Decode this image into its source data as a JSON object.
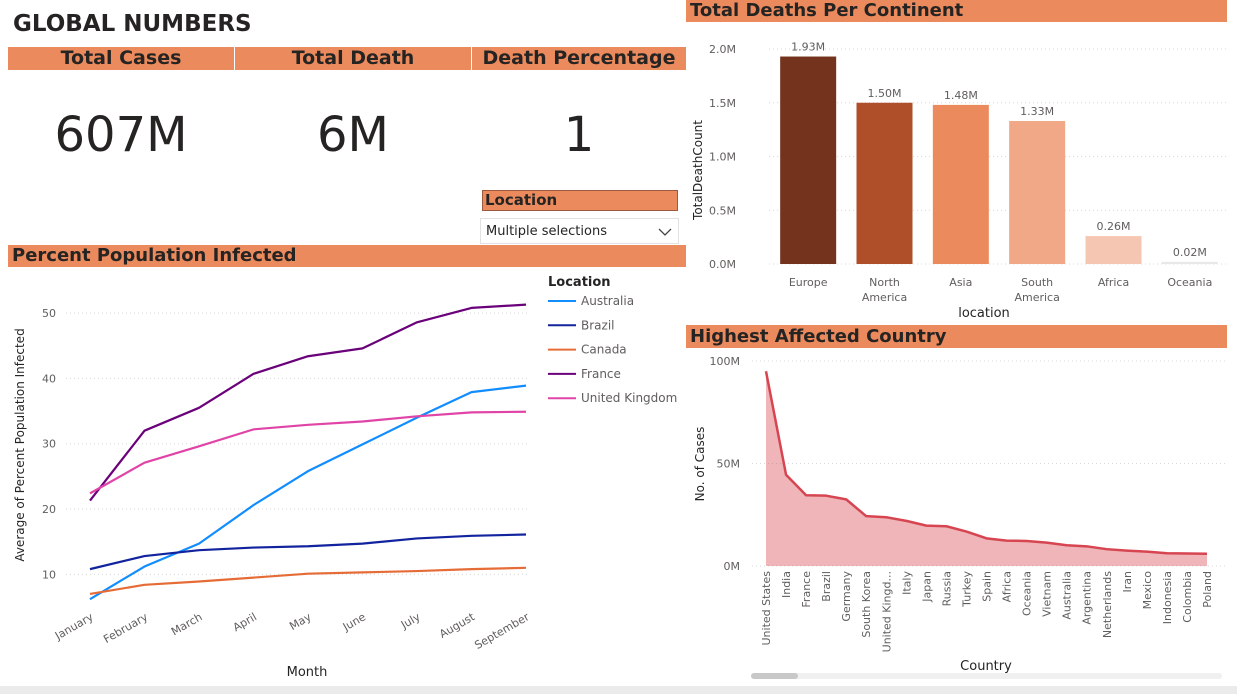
{
  "header": {
    "title": "GLOBAL NUMBERS"
  },
  "kpis": {
    "cases_label": "Total Cases",
    "cases_value": "607M",
    "death_label": "Total Death",
    "death_value": "6M",
    "pct_label": "Death Percentage",
    "pct_value": "1"
  },
  "slicer": {
    "label": "Location",
    "value": "Multiple selections"
  },
  "colors": {
    "banner": "#ea8a5d",
    "australia": "#118dff",
    "brazil": "#12239e",
    "canada": "#e66c37",
    "france": "#6b007b",
    "uk": "#e044a7",
    "area": "#d64550"
  },
  "chart_data": [
    {
      "type": "bar",
      "title": "Total Deaths Per Continent",
      "xlabel": "location",
      "ylabel": "TotalDeathCount",
      "categories": [
        "Europe",
        "North America",
        "Asia",
        "South America",
        "Africa",
        "Oceania"
      ],
      "values": [
        1930000,
        1500000,
        1480000,
        1330000,
        260000,
        20000
      ],
      "data_labels": [
        "1.93M",
        "1.50M",
        "1.48M",
        "1.33M",
        "0.26M",
        "0.02M"
      ],
      "bar_colors": [
        "#73331d",
        "#ae4f2a",
        "#ea8a5d",
        "#f0a886",
        "#f5c7b2",
        "#e8e8e8"
      ],
      "yticks": [
        0,
        500000,
        1000000,
        1500000,
        2000000
      ],
      "ytick_labels": [
        "0.0M",
        "0.5M",
        "1.0M",
        "1.5M",
        "2.0M"
      ],
      "ylim": [
        0,
        2000000
      ],
      "grid": true
    },
    {
      "type": "line",
      "title": "Percent Population Infected",
      "xlabel": "Month",
      "ylabel": "Average of Percent Population Infected",
      "legend_title": "Location",
      "legend_position": "right",
      "categories": [
        "January",
        "February",
        "March",
        "April",
        "May",
        "June",
        "July",
        "August",
        "September"
      ],
      "series": [
        {
          "name": "Australia",
          "color": "#118dff",
          "values": [
            6.2,
            11.2,
            14.7,
            20.6,
            25.8,
            29.9,
            34.0,
            37.9,
            38.9
          ]
        },
        {
          "name": "Brazil",
          "color": "#12239e",
          "values": [
            10.8,
            12.8,
            13.7,
            14.1,
            14.3,
            14.7,
            15.5,
            15.9,
            16.1
          ]
        },
        {
          "name": "Canada",
          "color": "#e66c37",
          "values": [
            7.0,
            8.4,
            8.9,
            9.5,
            10.1,
            10.3,
            10.5,
            10.8,
            11.0
          ]
        },
        {
          "name": "France",
          "color": "#6b007b",
          "values": [
            21.3,
            32.0,
            35.5,
            40.7,
            43.4,
            44.6,
            48.6,
            50.8,
            51.3
          ]
        },
        {
          "name": "United Kingdom",
          "color": "#e044a7",
          "values": [
            22.4,
            27.1,
            29.6,
            32.2,
            32.9,
            33.4,
            34.2,
            34.8,
            34.9
          ]
        }
      ],
      "yticks": [
        10,
        20,
        30,
        40,
        50
      ],
      "ylim": [
        5,
        54
      ],
      "grid": true
    },
    {
      "type": "area",
      "title": "Highest Affected Country",
      "xlabel": "Country",
      "ylabel": "No. of Cases",
      "categories": [
        "United States",
        "India",
        "France",
        "Brazil",
        "Germany",
        "South Korea",
        "United Kingd...",
        "Italy",
        "Japan",
        "Russia",
        "Turkey",
        "Spain",
        "Africa",
        "Oceania",
        "Vietnam",
        "Australia",
        "Argentina",
        "Netherlands",
        "Iran",
        "Mexico",
        "Indonesia",
        "Colombia",
        "Poland"
      ],
      "values": [
        95,
        44.5,
        34.5,
        34.3,
        32.5,
        24.3,
        23.8,
        22.0,
        19.7,
        19.4,
        16.8,
        13.5,
        12.4,
        12.2,
        11.4,
        10.1,
        9.6,
        8.2,
        7.5,
        7.0,
        6.2,
        6.1,
        6.0
      ],
      "units": "millions",
      "yticks": [
        0,
        50,
        100
      ],
      "ytick_labels": [
        "0M",
        "50M",
        "100M"
      ],
      "ylim": [
        0,
        100
      ],
      "grid": true
    }
  ]
}
